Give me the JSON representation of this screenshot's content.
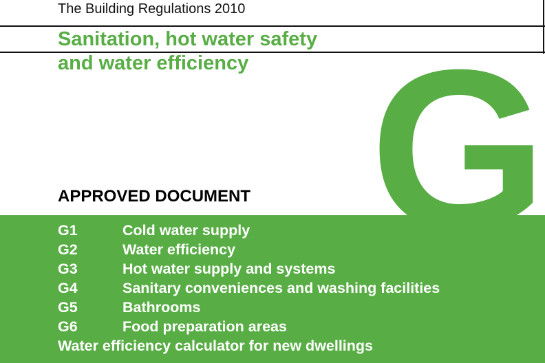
{
  "header": {
    "series": "The Building Regulations 2010"
  },
  "title": {
    "line1": "Sanitation, hot water safety",
    "line2": "and water efficiency"
  },
  "part_letter": "G",
  "doc_type": "APPROVED DOCUMENT",
  "colors": {
    "accent": "#58ad45"
  },
  "contents": [
    {
      "code": "G1",
      "label": "Cold water supply"
    },
    {
      "code": "G2",
      "label": "Water efficiency"
    },
    {
      "code": "G3",
      "label": "Hot water supply and systems"
    },
    {
      "code": "G4",
      "label": "Sanitary conveniences and washing facilities"
    },
    {
      "code": "G5",
      "label": "Bathrooms"
    },
    {
      "code": "G6",
      "label": "Food preparation areas"
    }
  ],
  "extra": "Water efficiency calculator for new dwellings"
}
